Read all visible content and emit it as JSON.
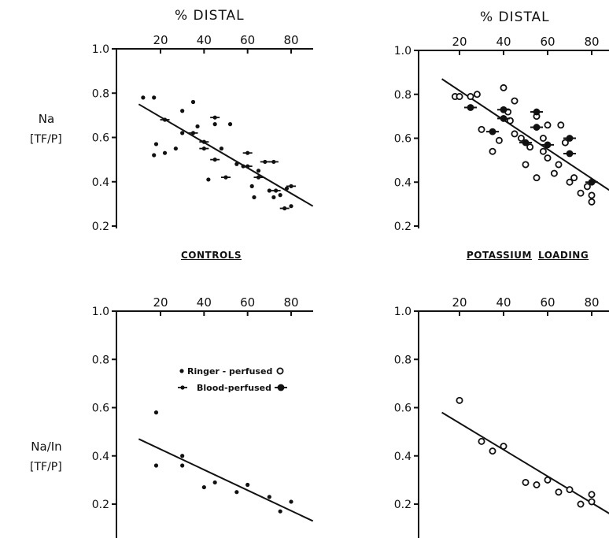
{
  "chart_data": [
    {
      "id": "controls_na",
      "type": "scatter",
      "xlabel": "% DISTAL",
      "ylabel_top": "Na",
      "ylabel_bottom": "[TF/P]",
      "xticks": [
        "20",
        "40",
        "60",
        "80"
      ],
      "yticks": [
        "0.2",
        "0.4",
        "0.6",
        "0.8",
        "1.0"
      ],
      "xlim": [
        10,
        90
      ],
      "ylim": [
        0.2,
        1.0
      ],
      "series": [
        {
          "name": "Ringer-perfused",
          "marker": "small-dot",
          "points": [
            [
              12,
              0.78
            ],
            [
              17,
              0.78
            ],
            [
              17,
              0.52
            ],
            [
              18,
              0.57
            ],
            [
              22,
              0.53
            ],
            [
              27,
              0.55
            ],
            [
              30,
              0.62
            ],
            [
              30,
              0.72
            ],
            [
              35,
              0.76
            ],
            [
              37,
              0.65
            ],
            [
              42,
              0.41
            ],
            [
              45,
              0.66
            ],
            [
              48,
              0.55
            ],
            [
              52,
              0.66
            ],
            [
              55,
              0.48
            ],
            [
              58,
              0.47
            ],
            [
              62,
              0.38
            ],
            [
              63,
              0.33
            ],
            [
              65,
              0.45
            ],
            [
              70,
              0.36
            ],
            [
              72,
              0.33
            ],
            [
              75,
              0.34
            ],
            [
              78,
              0.37
            ],
            [
              80,
              0.29
            ]
          ]
        },
        {
          "name": "Blood-perfused",
          "marker": "dot-bar",
          "points": [
            [
              22,
              0.68
            ],
            [
              35,
              0.62
            ],
            [
              40,
              0.58
            ],
            [
              40,
              0.55
            ],
            [
              45,
              0.69
            ],
            [
              45,
              0.5
            ],
            [
              50,
              0.42
            ],
            [
              60,
              0.53
            ],
            [
              60,
              0.47
            ],
            [
              65,
              0.42
            ],
            [
              68,
              0.49
            ],
            [
              72,
              0.49
            ],
            [
              73,
              0.36
            ],
            [
              77,
              0.28
            ],
            [
              80,
              0.38
            ]
          ]
        }
      ],
      "regression": [
        [
          10,
          0.75
        ],
        [
          90,
          0.29
        ]
      ]
    },
    {
      "id": "potassium_na",
      "type": "scatter",
      "xlabel": "% DISTAL",
      "xticks": [
        "20",
        "40",
        "60",
        "80"
      ],
      "yticks": [
        "0.2",
        "0.4",
        "0.6",
        "0.8",
        "1.0"
      ],
      "xlim": [
        10,
        90
      ],
      "ylim": [
        0.2,
        1.0
      ],
      "series": [
        {
          "name": "Ringer-perfused",
          "marker": "open-circle",
          "points": [
            [
              18,
              0.79
            ],
            [
              20,
              0.79
            ],
            [
              25,
              0.79
            ],
            [
              28,
              0.8
            ],
            [
              30,
              0.64
            ],
            [
              35,
              0.54
            ],
            [
              38,
              0.59
            ],
            [
              40,
              0.83
            ],
            [
              42,
              0.72
            ],
            [
              43,
              0.68
            ],
            [
              45,
              0.77
            ],
            [
              45,
              0.62
            ],
            [
              48,
              0.6
            ],
            [
              50,
              0.48
            ],
            [
              52,
              0.56
            ],
            [
              55,
              0.7
            ],
            [
              55,
              0.42
            ],
            [
              58,
              0.54
            ],
            [
              58,
              0.6
            ],
            [
              60,
              0.66
            ],
            [
              60,
              0.51
            ],
            [
              63,
              0.44
            ],
            [
              65,
              0.48
            ],
            [
              66,
              0.66
            ],
            [
              68,
              0.58
            ],
            [
              70,
              0.4
            ],
            [
              72,
              0.42
            ],
            [
              75,
              0.35
            ],
            [
              78,
              0.38
            ],
            [
              80,
              0.34
            ],
            [
              80,
              0.31
            ]
          ]
        },
        {
          "name": "Blood-perfused",
          "marker": "filled-dot-bar",
          "points": [
            [
              25,
              0.74
            ],
            [
              35,
              0.63
            ],
            [
              40,
              0.73
            ],
            [
              40,
              0.69
            ],
            [
              50,
              0.58
            ],
            [
              55,
              0.72
            ],
            [
              55,
              0.65
            ],
            [
              60,
              0.57
            ],
            [
              70,
              0.6
            ],
            [
              70,
              0.53
            ],
            [
              80,
              0.4
            ]
          ]
        }
      ],
      "regression": [
        [
          12,
          0.87
        ],
        [
          90,
          0.35
        ]
      ]
    },
    {
      "id": "controls_na_in",
      "type": "scatter",
      "xlabel": "",
      "ylabel_top": "Na/In",
      "ylabel_bottom": "[TF/P]",
      "xticks": [
        "20",
        "40",
        "60",
        "80"
      ],
      "yticks": [
        "0.2",
        "0.4",
        "0.6",
        "0.8",
        "1.0"
      ],
      "xlim": [
        10,
        90
      ],
      "ylim": [
        0.1,
        1.0
      ],
      "series": [
        {
          "name": "Ringer-perfused",
          "marker": "small-dot",
          "points": [
            [
              18,
              0.58
            ],
            [
              18,
              0.36
            ],
            [
              30,
              0.4
            ],
            [
              30,
              0.36
            ],
            [
              40,
              0.27
            ],
            [
              45,
              0.29
            ],
            [
              55,
              0.25
            ],
            [
              60,
              0.28
            ],
            [
              70,
              0.23
            ],
            [
              75,
              0.17
            ],
            [
              80,
              0.21
            ]
          ]
        }
      ],
      "regression": [
        [
          10,
          0.47
        ],
        [
          90,
          0.13
        ]
      ]
    },
    {
      "id": "potassium_na_in",
      "type": "scatter",
      "xlabel": "",
      "xticks": [
        "20",
        "40",
        "60",
        "80"
      ],
      "yticks": [
        "0.2",
        "0.4",
        "0.6",
        "0.8",
        "1.0"
      ],
      "xlim": [
        10,
        90
      ],
      "ylim": [
        0.1,
        1.0
      ],
      "series": [
        {
          "name": "Ringer-perfused",
          "marker": "open-circle",
          "points": [
            [
              20,
              0.63
            ],
            [
              30,
              0.46
            ],
            [
              35,
              0.42
            ],
            [
              40,
              0.44
            ],
            [
              50,
              0.29
            ],
            [
              55,
              0.28
            ],
            [
              60,
              0.3
            ],
            [
              65,
              0.25
            ],
            [
              70,
              0.26
            ],
            [
              75,
              0.2
            ],
            [
              80,
              0.24
            ],
            [
              80,
              0.21
            ]
          ]
        }
      ],
      "regression": [
        [
          12,
          0.58
        ],
        [
          90,
          0.15
        ]
      ]
    }
  ],
  "labels": {
    "distal_left": "% DISTAL",
    "distal_right": "% DISTAL",
    "na_top": "Na",
    "tfp_top": "TF/P",
    "na_in_top": "Na/In",
    "tfp_bottom": "TF/P",
    "controls": "CONTROLS",
    "potassium": "POTASSIUM",
    "loading": "LOADING"
  },
  "legend": {
    "ringer": "Ringer - perfused",
    "blood": "Blood-perfused"
  }
}
